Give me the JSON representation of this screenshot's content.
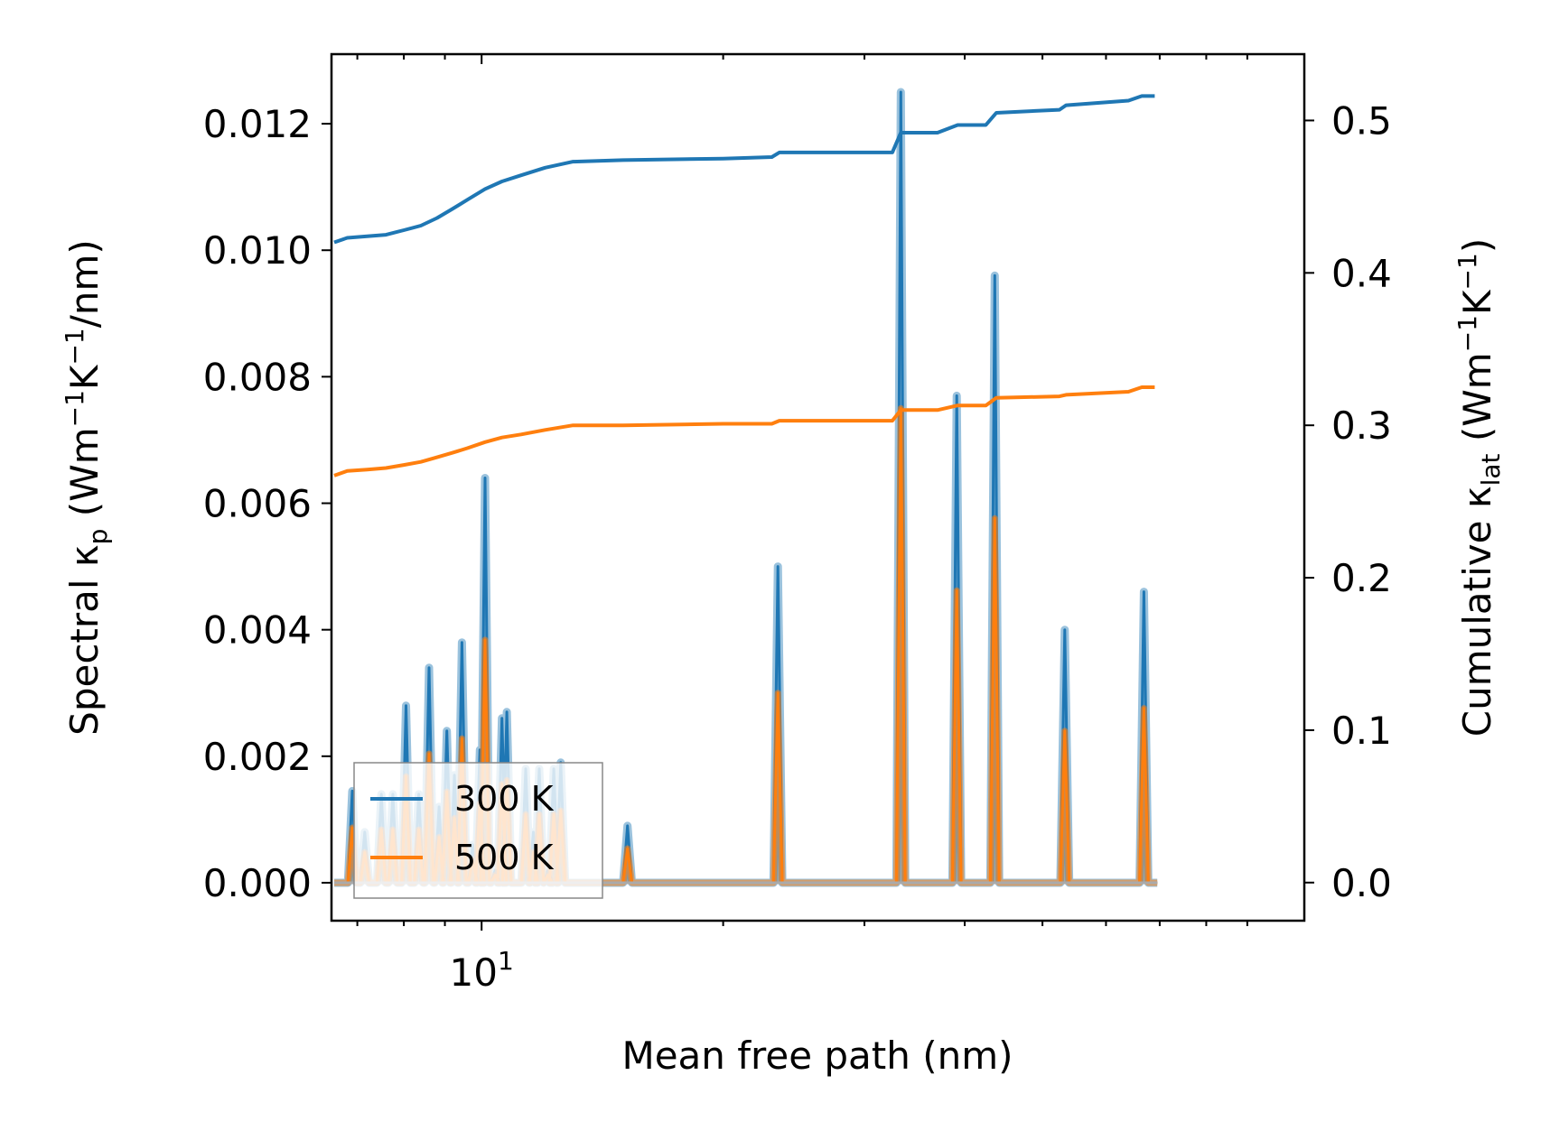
{
  "chart_data": {
    "type": "line",
    "title": "",
    "xlabel": "Mean free path (nm)",
    "ylabel_left": {
      "base": "Spectral κ",
      "sub": "p",
      "units_pre": " (Wm",
      "sup1": "−1",
      "mid": "K",
      "sup2": "−1",
      "units_post": "/nm)"
    },
    "ylabel_right": {
      "base": "Cumulative κ",
      "sub": "lat",
      "units_pre": " (Wm",
      "sup1": "−1",
      "mid": "K",
      "sup2": "−1",
      "units_post": ")"
    },
    "xscale": "log",
    "xlim": [
      6.5,
      106
    ],
    "ylim_left": [
      -0.0006,
      0.0131
    ],
    "ylim_right": [
      -0.025,
      0.5435
    ],
    "x_major_ticks": [
      {
        "value": 10,
        "base": "10",
        "exp": "1"
      }
    ],
    "x_minor_ticks": [
      7,
      8,
      9,
      20,
      30,
      40,
      50,
      60,
      70,
      80,
      90
    ],
    "yticks_left": [
      0,
      0.002,
      0.004,
      0.006,
      0.008,
      0.01,
      0.012
    ],
    "yticks_left_labels": [
      "0.000",
      "0.002",
      "0.004",
      "0.006",
      "0.008",
      "0.010",
      "0.012"
    ],
    "yticks_right": [
      0,
      0.1,
      0.2,
      0.3,
      0.4,
      0.5
    ],
    "yticks_right_labels": [
      "0.0",
      "0.1",
      "0.2",
      "0.3",
      "0.4",
      "0.5"
    ],
    "legend": {
      "position": "lower-left",
      "entries": [
        "300 K",
        "500 K"
      ]
    },
    "colors": {
      "300 K": "#1f77b4",
      "500 K": "#ff7f0e"
    },
    "spectral_300K_peaks": [
      {
        "x": 6.9,
        "y": 0.00145
      },
      {
        "x": 7.15,
        "y": 0.0008
      },
      {
        "x": 7.5,
        "y": 0.0014
      },
      {
        "x": 7.75,
        "y": 0.0014
      },
      {
        "x": 8.05,
        "y": 0.0028
      },
      {
        "x": 8.35,
        "y": 0.0014
      },
      {
        "x": 8.6,
        "y": 0.0034
      },
      {
        "x": 8.85,
        "y": 0.0012
      },
      {
        "x": 9.05,
        "y": 0.0024
      },
      {
        "x": 9.25,
        "y": 0.0017
      },
      {
        "x": 9.45,
        "y": 0.0038
      },
      {
        "x": 9.75,
        "y": 0.0006
      },
      {
        "x": 9.95,
        "y": 0.0021
      },
      {
        "x": 10.1,
        "y": 0.0064
      },
      {
        "x": 10.4,
        "y": 0.0002
      },
      {
        "x": 10.6,
        "y": 0.0026
      },
      {
        "x": 10.75,
        "y": 0.0027
      },
      {
        "x": 11.35,
        "y": 0.0018
      },
      {
        "x": 11.6,
        "y": 0.0008
      },
      {
        "x": 11.8,
        "y": 0.0018
      },
      {
        "x": 12.1,
        "y": 0.0002
      },
      {
        "x": 12.3,
        "y": 0.0018
      },
      {
        "x": 12.55,
        "y": 0.0019
      },
      {
        "x": 15.2,
        "y": 0.0009
      },
      {
        "x": 23.4,
        "y": 0.005
      },
      {
        "x": 33.3,
        "y": 0.0125
      },
      {
        "x": 39.1,
        "y": 0.0077
      },
      {
        "x": 43.6,
        "y": 0.0096
      },
      {
        "x": 53.3,
        "y": 0.004
      },
      {
        "x": 66.9,
        "y": 0.0046
      }
    ],
    "temperature_ratio_500_to_300": 0.6,
    "cumulative_300K": [
      [
        6.55,
        0.42
      ],
      [
        6.8,
        0.423
      ],
      [
        7.2,
        0.424
      ],
      [
        7.6,
        0.425
      ],
      [
        8.0,
        0.428
      ],
      [
        8.4,
        0.431
      ],
      [
        8.8,
        0.436
      ],
      [
        9.2,
        0.442
      ],
      [
        9.6,
        0.448
      ],
      [
        10.1,
        0.455
      ],
      [
        10.6,
        0.46
      ],
      [
        11.2,
        0.464
      ],
      [
        12.0,
        0.469
      ],
      [
        13.0,
        0.473
      ],
      [
        15.0,
        0.474
      ],
      [
        20.0,
        0.475
      ],
      [
        23.0,
        0.476
      ],
      [
        23.5,
        0.479
      ],
      [
        32.5,
        0.479
      ],
      [
        33.3,
        0.492
      ],
      [
        37.0,
        0.492
      ],
      [
        39.2,
        0.497
      ],
      [
        42.5,
        0.497
      ],
      [
        43.8,
        0.505
      ],
      [
        52.5,
        0.507
      ],
      [
        53.5,
        0.51
      ],
      [
        64.0,
        0.513
      ],
      [
        66.5,
        0.516
      ],
      [
        69.0,
        0.516
      ]
    ],
    "cumulative_500K": [
      [
        6.55,
        0.267
      ],
      [
        6.8,
        0.27
      ],
      [
        7.2,
        0.271
      ],
      [
        7.6,
        0.272
      ],
      [
        8.0,
        0.274
      ],
      [
        8.4,
        0.276
      ],
      [
        8.8,
        0.279
      ],
      [
        9.2,
        0.282
      ],
      [
        9.6,
        0.285
      ],
      [
        10.1,
        0.289
      ],
      [
        10.6,
        0.292
      ],
      [
        11.2,
        0.294
      ],
      [
        12.0,
        0.297
      ],
      [
        13.0,
        0.3
      ],
      [
        15.0,
        0.3
      ],
      [
        20.0,
        0.301
      ],
      [
        23.0,
        0.301
      ],
      [
        23.5,
        0.303
      ],
      [
        32.5,
        0.303
      ],
      [
        33.3,
        0.31
      ],
      [
        37.0,
        0.31
      ],
      [
        39.2,
        0.313
      ],
      [
        42.5,
        0.313
      ],
      [
        43.8,
        0.318
      ],
      [
        52.5,
        0.319
      ],
      [
        53.5,
        0.32
      ],
      [
        64.0,
        0.322
      ],
      [
        66.5,
        0.325
      ],
      [
        69.0,
        0.325
      ]
    ]
  }
}
